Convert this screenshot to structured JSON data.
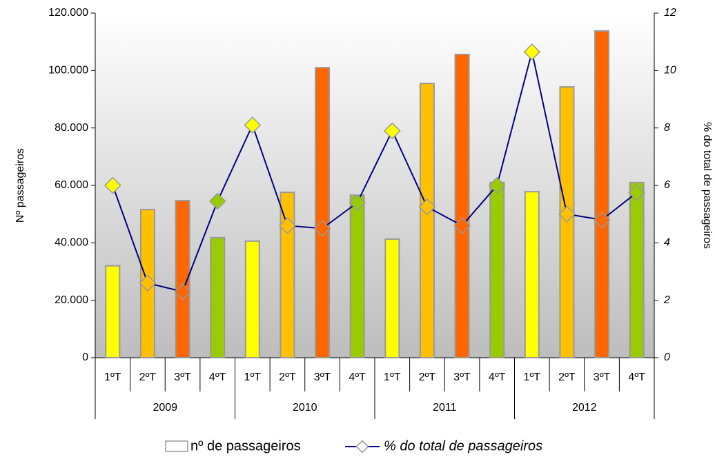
{
  "chart_data": {
    "type": "bar_line",
    "categories": [
      "1ºT",
      "2ºT",
      "3ºT",
      "4ºT",
      "1ºT",
      "2ºT",
      "3ºT",
      "4ºT",
      "1ºT",
      "2ºT",
      "3ºT",
      "4ºT",
      "1ºT",
      "2ºT",
      "3ºT",
      "4ºT"
    ],
    "groups": [
      "2009",
      "2010",
      "2011",
      "2012"
    ],
    "ylabel": "Nº passageiros",
    "y2label": "% do total de passageiros",
    "ylim": [
      0,
      120000
    ],
    "yticks": [
      {
        "value": 0,
        "label": "0"
      },
      {
        "value": 20000,
        "label": "20.000"
      },
      {
        "value": 40000,
        "label": "40.000"
      },
      {
        "value": 60000,
        "label": "60.000"
      },
      {
        "value": 80000,
        "label": "80.000"
      },
      {
        "value": 100000,
        "label": "100.000"
      },
      {
        "value": 120000,
        "label": "120.000"
      }
    ],
    "y2lim": [
      0,
      12
    ],
    "y2ticks": [
      0,
      2,
      4,
      6,
      8,
      10,
      12
    ],
    "series": [
      {
        "name": "nº de passageiros",
        "type": "bar",
        "colors": [
          "#ffff00",
          "#ffc000",
          "#ff6600",
          "#99cc00",
          "#ffff00",
          "#ffc000",
          "#ff6600",
          "#99cc00",
          "#ffff00",
          "#ffc000",
          "#ff6600",
          "#99cc00",
          "#ffff00",
          "#ffc000",
          "#ff6600",
          "#99cc00"
        ],
        "values": [
          32000,
          51600,
          54700,
          41800,
          40600,
          57600,
          101000,
          56600,
          41300,
          95500,
          105600,
          61000,
          57800,
          94300,
          113800,
          61000
        ]
      },
      {
        "name": "% do total de passageiros",
        "type": "line",
        "axis": "y2",
        "color": "#000080",
        "values": [
          6.0,
          2.6,
          2.3,
          5.45,
          8.1,
          4.6,
          4.5,
          5.4,
          7.9,
          5.25,
          4.6,
          6.0,
          10.65,
          5.0,
          4.8,
          5.75
        ]
      }
    ]
  }
}
